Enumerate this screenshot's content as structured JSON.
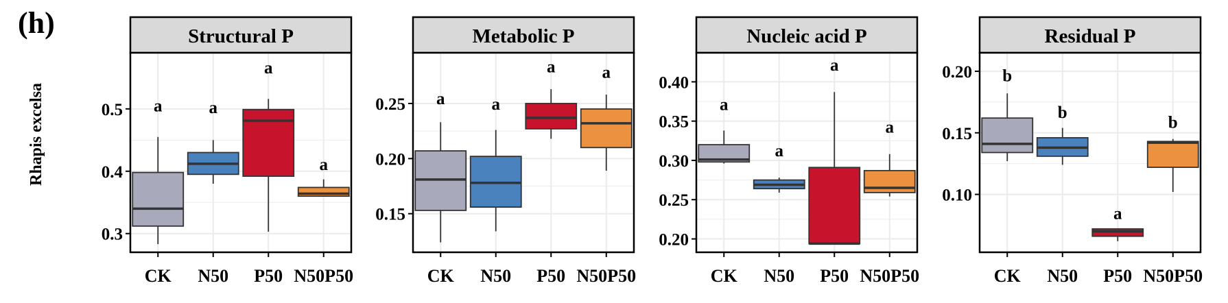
{
  "panel_label": "(h)",
  "row_label": "Rhapis excelsa",
  "colors": {
    "CK": "#a8aabb",
    "N50": "#4a82bd",
    "P50": "#c8132d",
    "N50P50": "#ec913f",
    "strip_fill": "#d9d9d9",
    "grid": "#ebebeb"
  },
  "chart_data": [
    {
      "type": "box",
      "title": "Structural P",
      "categories": [
        "CK",
        "N50",
        "P50",
        "N50P50"
      ],
      "ylim": [
        0.27,
        0.59
      ],
      "yticks": [
        0.3,
        0.4,
        0.5
      ],
      "ytick_labels": [
        "0.3",
        "0.4",
        "0.5"
      ],
      "boxes": [
        {
          "min": 0.283,
          "q1": 0.312,
          "median": 0.34,
          "q3": 0.398,
          "max": 0.455,
          "letter": "a",
          "letter_y": 0.506
        },
        {
          "min": 0.38,
          "q1": 0.395,
          "median": 0.412,
          "q3": 0.43,
          "max": 0.45,
          "letter": "a",
          "letter_y": 0.503
        },
        {
          "min": 0.303,
          "q1": 0.392,
          "median": 0.481,
          "q3": 0.499,
          "max": 0.516,
          "letter": "a",
          "letter_y": 0.567
        },
        {
          "min": 0.36,
          "q1": 0.36,
          "median": 0.364,
          "q3": 0.374,
          "max": 0.387,
          "letter": "a",
          "letter_y": 0.412
        }
      ]
    },
    {
      "type": "box",
      "title": "Metabolic P",
      "categories": [
        "CK",
        "N50",
        "P50",
        "N50P50"
      ],
      "ylim": [
        0.115,
        0.296
      ],
      "yticks": [
        0.15,
        0.2,
        0.25
      ],
      "ytick_labels": [
        "0.15",
        "0.20",
        "0.25"
      ],
      "boxes": [
        {
          "min": 0.124,
          "q1": 0.153,
          "median": 0.181,
          "q3": 0.207,
          "max": 0.233,
          "letter": "a",
          "letter_y": 0.255
        },
        {
          "min": 0.134,
          "q1": 0.156,
          "median": 0.178,
          "q3": 0.202,
          "max": 0.226,
          "letter": "a",
          "letter_y": 0.25
        },
        {
          "min": 0.218,
          "q1": 0.227,
          "median": 0.237,
          "q3": 0.25,
          "max": 0.263,
          "letter": "a",
          "letter_y": 0.284
        },
        {
          "min": 0.189,
          "q1": 0.21,
          "median": 0.232,
          "q3": 0.245,
          "max": 0.258,
          "letter": "a",
          "letter_y": 0.279
        }
      ]
    },
    {
      "type": "box",
      "title": "Nucleic acid P",
      "categories": [
        "CK",
        "N50",
        "P50",
        "N50P50"
      ],
      "ylim": [
        0.183,
        0.437
      ],
      "yticks": [
        0.2,
        0.25,
        0.3,
        0.35,
        0.4
      ],
      "ytick_labels": [
        "0.20",
        "0.25",
        "0.30",
        "0.35",
        "0.40"
      ],
      "boxes": [
        {
          "min": 0.296,
          "q1": 0.298,
          "median": 0.301,
          "q3": 0.32,
          "max": 0.338,
          "letter": "a",
          "letter_y": 0.372
        },
        {
          "min": 0.259,
          "q1": 0.264,
          "median": 0.269,
          "q3": 0.275,
          "max": 0.278,
          "letter": "a",
          "letter_y": 0.313
        },
        {
          "min": 0.193,
          "q1": 0.194,
          "median": 0.194,
          "q3": 0.291,
          "max": 0.387,
          "letter": "a",
          "letter_y": 0.422
        },
        {
          "min": 0.254,
          "q1": 0.259,
          "median": 0.265,
          "q3": 0.287,
          "max": 0.308,
          "letter": "a",
          "letter_y": 0.343
        }
      ]
    },
    {
      "type": "box",
      "title": "Residual P",
      "categories": [
        "CK",
        "N50",
        "P50",
        "N50P50"
      ],
      "ylim": [
        0.053,
        0.215
      ],
      "yticks": [
        0.1,
        0.15,
        0.2
      ],
      "ytick_labels": [
        "0.10",
        "0.15",
        "0.20"
      ],
      "boxes": [
        {
          "min": 0.127,
          "q1": 0.134,
          "median": 0.141,
          "q3": 0.162,
          "max": 0.182,
          "letter": "b",
          "letter_y": 0.197
        },
        {
          "min": 0.124,
          "q1": 0.131,
          "median": 0.138,
          "q3": 0.146,
          "max": 0.154,
          "letter": "b",
          "letter_y": 0.167
        },
        {
          "min": 0.062,
          "q1": 0.066,
          "median": 0.07,
          "q3": 0.072,
          "max": 0.072,
          "letter": "a",
          "letter_y": 0.085
        },
        {
          "min": 0.102,
          "q1": 0.122,
          "median": 0.142,
          "q3": 0.143,
          "max": 0.145,
          "letter": "b",
          "letter_y": 0.159
        }
      ]
    }
  ]
}
